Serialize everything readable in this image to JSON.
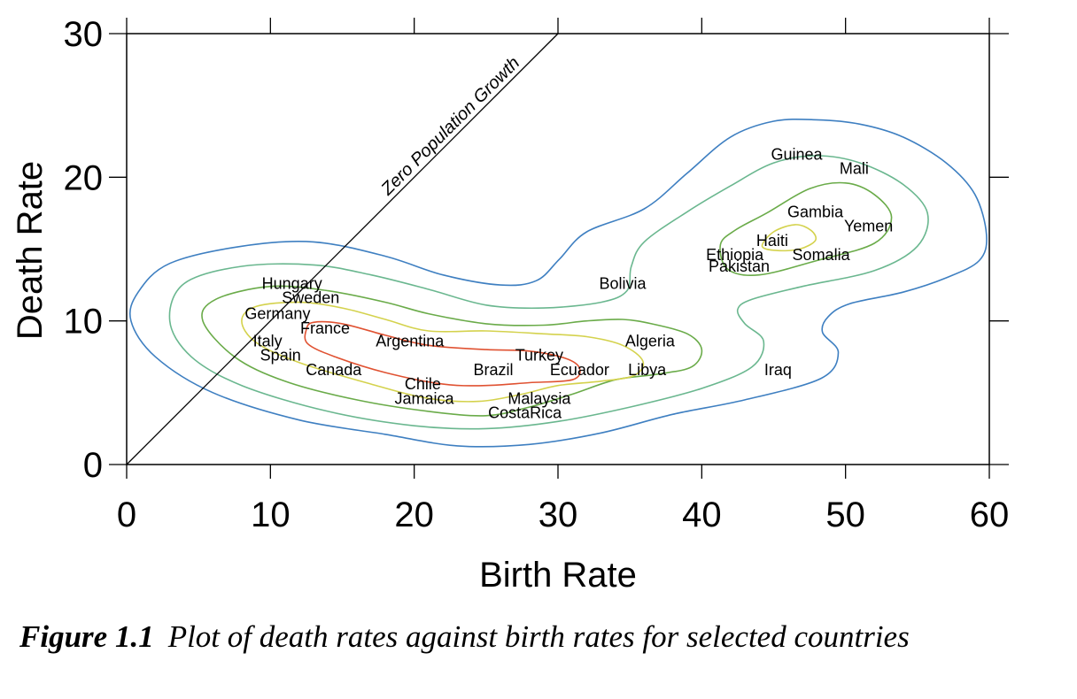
{
  "chart_data": {
    "type": "scatter",
    "title": "",
    "xlabel": "Birth Rate",
    "ylabel": "Death Rate",
    "xlim": [
      0,
      60
    ],
    "ylim": [
      0,
      30
    ],
    "xticks": [
      0,
      10,
      20,
      30,
      40,
      50,
      60
    ],
    "yticks": [
      0,
      10,
      20,
      30
    ],
    "grid": false,
    "reference_line": {
      "label": "Zero Population Growth",
      "from": [
        0,
        0
      ],
      "to": [
        30,
        30
      ]
    },
    "points": [
      {
        "label": "Hungary",
        "x": 11.5,
        "y": 12.6
      },
      {
        "label": "Sweden",
        "x": 12.8,
        "y": 11.6
      },
      {
        "label": "Germany",
        "x": 10.5,
        "y": 10.5
      },
      {
        "label": "France",
        "x": 13.8,
        "y": 9.5
      },
      {
        "label": "Italy",
        "x": 9.8,
        "y": 8.6
      },
      {
        "label": "Spain",
        "x": 10.7,
        "y": 7.6
      },
      {
        "label": "Canada",
        "x": 14.4,
        "y": 6.6
      },
      {
        "label": "Argentina",
        "x": 19.7,
        "y": 8.6
      },
      {
        "label": "Chile",
        "x": 20.6,
        "y": 5.6
      },
      {
        "label": "Jamaica",
        "x": 20.7,
        "y": 4.6
      },
      {
        "label": "Brazil",
        "x": 25.5,
        "y": 6.6
      },
      {
        "label": "Turkey",
        "x": 28.7,
        "y": 7.6
      },
      {
        "label": "Malaysia",
        "x": 28.7,
        "y": 4.6
      },
      {
        "label": "CostaRica",
        "x": 27.7,
        "y": 3.6
      },
      {
        "label": "Ecuador",
        "x": 31.5,
        "y": 6.6
      },
      {
        "label": "Libya",
        "x": 36.2,
        "y": 6.6
      },
      {
        "label": "Algeria",
        "x": 36.4,
        "y": 8.6
      },
      {
        "label": "Bolivia",
        "x": 34.5,
        "y": 12.6
      },
      {
        "label": "Iraq",
        "x": 45.3,
        "y": 6.6
      },
      {
        "label": "Ethiopia",
        "x": 42.3,
        "y": 14.6
      },
      {
        "label": "Pakistan",
        "x": 42.6,
        "y": 13.8
      },
      {
        "label": "Haiti",
        "x": 44.9,
        "y": 15.6
      },
      {
        "label": "Somalia",
        "x": 48.3,
        "y": 14.6
      },
      {
        "label": "Gambia",
        "x": 47.9,
        "y": 17.6
      },
      {
        "label": "Yemen",
        "x": 51.6,
        "y": 16.6
      },
      {
        "label": "Guinea",
        "x": 46.6,
        "y": 21.6
      },
      {
        "label": "Mali",
        "x": 50.6,
        "y": 20.6
      }
    ],
    "contours": [
      {
        "color": "#3e7fc1",
        "points": [
          [
            0.3,
            10
          ],
          [
            0.8,
            12
          ],
          [
            3,
            14
          ],
          [
            8,
            15.2
          ],
          [
            13,
            15.5
          ],
          [
            18,
            14.5
          ],
          [
            22,
            13.2
          ],
          [
            26,
            12.5
          ],
          [
            28.5,
            12.8
          ],
          [
            30.1,
            14.3
          ],
          [
            32,
            16.2
          ],
          [
            36,
            17.8
          ],
          [
            39,
            20.3
          ],
          [
            42,
            22.8
          ],
          [
            45,
            23.9
          ],
          [
            48,
            24
          ],
          [
            51,
            23.7
          ],
          [
            54,
            22.8
          ],
          [
            57,
            21
          ],
          [
            59,
            18.8
          ],
          [
            59.8,
            16
          ],
          [
            59.3,
            14.2
          ],
          [
            57,
            13
          ],
          [
            54,
            12
          ],
          [
            50.3,
            11.2
          ],
          [
            48.8,
            10.3
          ],
          [
            48.4,
            9.2
          ],
          [
            49.5,
            7.8
          ],
          [
            48.3,
            6
          ],
          [
            43,
            4.5
          ],
          [
            38,
            3.5
          ],
          [
            33,
            2.2
          ],
          [
            28,
            1.4
          ],
          [
            23,
            1.3
          ],
          [
            18,
            2.1
          ],
          [
            12,
            3.1
          ],
          [
            6,
            5
          ],
          [
            2,
            7.5
          ],
          [
            0.3,
            10
          ]
        ]
      },
      {
        "color": "#6ab78f",
        "points": [
          [
            3,
            10
          ],
          [
            4,
            12.6
          ],
          [
            8,
            13.8
          ],
          [
            13,
            13.9
          ],
          [
            17,
            13.2
          ],
          [
            21,
            12.2
          ],
          [
            25,
            11.1
          ],
          [
            29,
            10.9
          ],
          [
            33,
            11.3
          ],
          [
            34.8,
            12.1
          ],
          [
            35.1,
            13.8
          ],
          [
            36,
            15.5
          ],
          [
            39,
            17.6
          ],
          [
            42,
            19.4
          ],
          [
            45,
            21
          ],
          [
            48,
            21.5
          ],
          [
            51,
            21
          ],
          [
            54,
            19.5
          ],
          [
            55.7,
            17.5
          ],
          [
            55,
            15.2
          ],
          [
            52,
            13.5
          ],
          [
            47,
            12.4
          ],
          [
            43.5,
            11.5
          ],
          [
            42.5,
            10.8
          ],
          [
            43,
            9.8
          ],
          [
            44.3,
            8.6
          ],
          [
            43.5,
            6.8
          ],
          [
            40,
            5.3
          ],
          [
            35,
            4
          ],
          [
            30,
            3
          ],
          [
            25,
            2.5
          ],
          [
            20,
            2.7
          ],
          [
            14,
            3.7
          ],
          [
            8,
            5.5
          ],
          [
            4.5,
            7.5
          ],
          [
            3,
            10
          ]
        ]
      },
      {
        "color": "#6aab49",
        "points": [
          [
            5.3,
            10
          ],
          [
            6.2,
            11.5
          ],
          [
            10,
            12.4
          ],
          [
            14,
            12.1
          ],
          [
            18,
            11.3
          ],
          [
            21,
            10.5
          ],
          [
            25,
            9.8
          ],
          [
            29,
            9.7
          ],
          [
            32,
            10
          ],
          [
            34.5,
            10.1
          ],
          [
            36.5,
            9.8
          ],
          [
            39,
            9.1
          ],
          [
            40,
            8
          ],
          [
            39.3,
            6.8
          ],
          [
            37,
            6.3
          ],
          [
            34,
            5.9
          ],
          [
            31,
            4.9
          ],
          [
            28,
            4
          ],
          [
            25,
            3.4
          ],
          [
            21,
            3.7
          ],
          [
            16,
            4.5
          ],
          [
            11,
            5.8
          ],
          [
            7.5,
            7.5
          ],
          [
            5.3,
            10
          ]
        ]
      },
      {
        "color": "#d4d24d",
        "points": [
          [
            8,
            10
          ],
          [
            9,
            11
          ],
          [
            12,
            11.3
          ],
          [
            15,
            10.9
          ],
          [
            18,
            10.1
          ],
          [
            21,
            9.3
          ],
          [
            25,
            9.3
          ],
          [
            29,
            9.1
          ],
          [
            32,
            8.9
          ],
          [
            34.5,
            8.3
          ],
          [
            35.9,
            7.2
          ],
          [
            35.3,
            6.2
          ],
          [
            33,
            5.8
          ],
          [
            30,
            5.5
          ],
          [
            27.5,
            4.9
          ],
          [
            24.5,
            4.4
          ],
          [
            21,
            4.6
          ],
          [
            17,
            5.6
          ],
          [
            12,
            7.1
          ],
          [
            9,
            8.5
          ],
          [
            8,
            10
          ]
        ]
      },
      {
        "color": "#e05232",
        "points": [
          [
            12.5,
            9.4
          ],
          [
            13,
            9.9
          ],
          [
            15,
            9.8
          ],
          [
            18,
            9
          ],
          [
            21,
            8.3
          ],
          [
            25,
            8
          ],
          [
            28,
            7.9
          ],
          [
            30.5,
            7.4
          ],
          [
            31.5,
            6.7
          ],
          [
            31,
            5.9
          ],
          [
            28,
            5.7
          ],
          [
            25,
            5.5
          ],
          [
            22,
            5.6
          ],
          [
            18,
            6.4
          ],
          [
            14.5,
            7.5
          ],
          [
            12.6,
            8.4
          ],
          [
            12.5,
            9.4
          ]
        ]
      },
      {
        "color": "#6aab49",
        "points": [
          [
            41.3,
            15.3
          ],
          [
            42.3,
            16.3
          ],
          [
            44.5,
            17.5
          ],
          [
            47.5,
            19.2
          ],
          [
            50,
            19.6
          ],
          [
            52,
            18.8
          ],
          [
            53.2,
            17.2
          ],
          [
            52,
            15.4
          ],
          [
            48,
            14.2
          ],
          [
            44,
            13.2
          ],
          [
            41.8,
            13.6
          ],
          [
            41.3,
            15.3
          ]
        ]
      },
      {
        "color": "#d4d24d",
        "points": [
          [
            44.2,
            15.2
          ],
          [
            45,
            16.2
          ],
          [
            46.5,
            16.7
          ],
          [
            47.6,
            16.3
          ],
          [
            47.9,
            15.6
          ],
          [
            46.8,
            15
          ],
          [
            45.2,
            14.9
          ],
          [
            44.2,
            15.2
          ]
        ]
      }
    ]
  },
  "caption": {
    "label": "Figure 1.1",
    "text": "Plot of death rates against birth rates for selected countries"
  }
}
